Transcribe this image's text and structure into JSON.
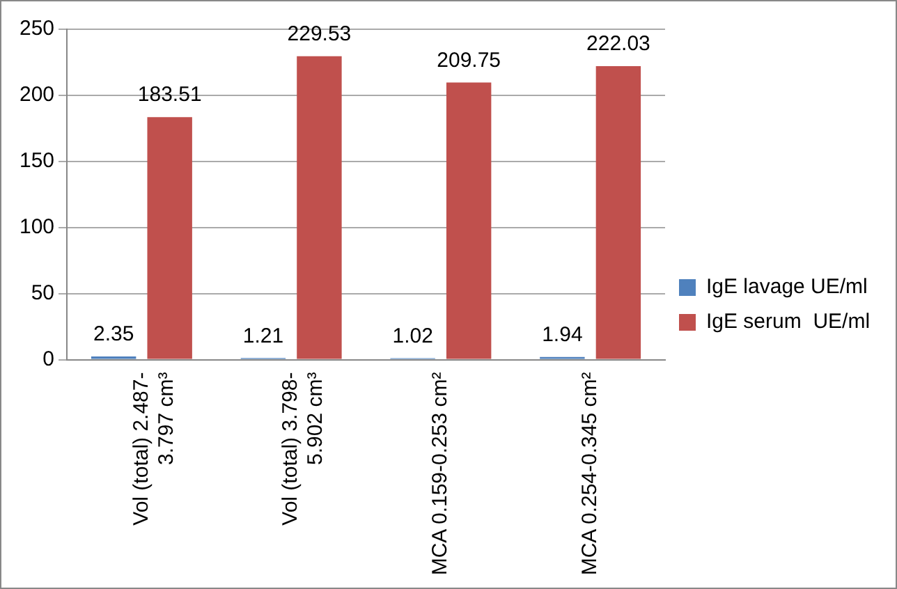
{
  "chart_data": {
    "type": "bar",
    "categories": [
      "Vol (total) 2.487-\n3.797 cm³",
      "Vol (total) 3.798-\n5.902 cm³",
      "MCA 0.159-0.253 cm²",
      "MCA 0.254-0.345 cm²"
    ],
    "series": [
      {
        "name": "IgE lavage UE/ml",
        "color": "#4f81bd",
        "values": [
          2.35,
          1.21,
          1.02,
          1.94
        ]
      },
      {
        "name": "IgE serum  UE/ml",
        "color": "#c0504d",
        "values": [
          183.51,
          229.53,
          209.75,
          222.03
        ]
      }
    ],
    "ylim": [
      0,
      250
    ],
    "yticks": [
      0,
      50,
      100,
      150,
      200,
      250
    ],
    "grid": "y",
    "legend": "right",
    "data_labels": true
  }
}
